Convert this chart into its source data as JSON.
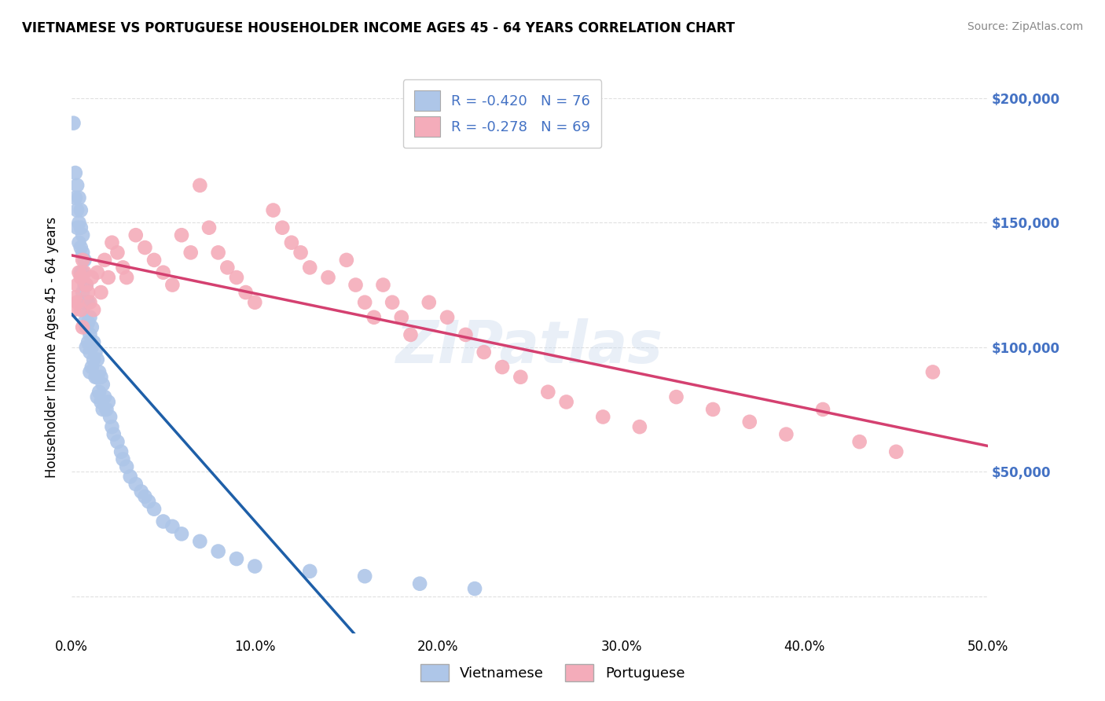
{
  "title": "VIETNAMESE VS PORTUGUESE HOUSEHOLDER INCOME AGES 45 - 64 YEARS CORRELATION CHART",
  "source": "Source: ZipAtlas.com",
  "ylabel": "Householder Income Ages 45 - 64 years",
  "xlim": [
    0.0,
    0.5
  ],
  "ylim": [
    -15000,
    215000
  ],
  "xtick_labels": [
    "0.0%",
    "10.0%",
    "20.0%",
    "30.0%",
    "40.0%",
    "50.0%"
  ],
  "xtick_vals": [
    0.0,
    0.1,
    0.2,
    0.3,
    0.4,
    0.5
  ],
  "ytick_vals": [
    0,
    50000,
    100000,
    150000,
    200000
  ],
  "viet_R": -0.42,
  "viet_N": 76,
  "port_R": -0.278,
  "port_N": 69,
  "viet_color": "#AEC6E8",
  "port_color": "#F4ACBA",
  "viet_line_color": "#1E5FA8",
  "port_line_color": "#D44070",
  "background_color": "#FFFFFF",
  "grid_color": "#DDDDDD",
  "right_tick_color": "#4472C4",
  "watermark": "ZIPatlas",
  "legend_label_viet": "Vietnamese",
  "legend_label_port": "Portuguese",
  "viet_x": [
    0.001,
    0.002,
    0.002,
    0.003,
    0.003,
    0.003,
    0.004,
    0.004,
    0.004,
    0.005,
    0.005,
    0.005,
    0.005,
    0.006,
    0.006,
    0.006,
    0.006,
    0.006,
    0.007,
    0.007,
    0.007,
    0.007,
    0.008,
    0.008,
    0.008,
    0.008,
    0.009,
    0.009,
    0.009,
    0.01,
    0.01,
    0.01,
    0.01,
    0.011,
    0.011,
    0.011,
    0.012,
    0.012,
    0.013,
    0.013,
    0.014,
    0.014,
    0.014,
    0.015,
    0.015,
    0.016,
    0.016,
    0.017,
    0.017,
    0.018,
    0.019,
    0.02,
    0.021,
    0.022,
    0.023,
    0.025,
    0.027,
    0.028,
    0.03,
    0.032,
    0.035,
    0.038,
    0.04,
    0.042,
    0.045,
    0.05,
    0.055,
    0.06,
    0.07,
    0.08,
    0.09,
    0.1,
    0.13,
    0.16,
    0.19,
    0.22
  ],
  "viet_y": [
    190000,
    170000,
    160000,
    165000,
    155000,
    148000,
    160000,
    150000,
    142000,
    155000,
    148000,
    140000,
    130000,
    145000,
    138000,
    130000,
    122000,
    115000,
    135000,
    125000,
    118000,
    110000,
    125000,
    118000,
    108000,
    100000,
    118000,
    110000,
    102000,
    112000,
    105000,
    98000,
    90000,
    108000,
    100000,
    92000,
    102000,
    95000,
    98000,
    88000,
    95000,
    88000,
    80000,
    90000,
    82000,
    88000,
    78000,
    85000,
    75000,
    80000,
    75000,
    78000,
    72000,
    68000,
    65000,
    62000,
    58000,
    55000,
    52000,
    48000,
    45000,
    42000,
    40000,
    38000,
    35000,
    30000,
    28000,
    25000,
    22000,
    18000,
    15000,
    12000,
    10000,
    8000,
    5000,
    3000
  ],
  "port_x": [
    0.001,
    0.002,
    0.003,
    0.003,
    0.004,
    0.005,
    0.005,
    0.006,
    0.006,
    0.007,
    0.008,
    0.009,
    0.01,
    0.011,
    0.012,
    0.014,
    0.016,
    0.018,
    0.02,
    0.022,
    0.025,
    0.028,
    0.03,
    0.035,
    0.04,
    0.045,
    0.05,
    0.055,
    0.06,
    0.065,
    0.07,
    0.075,
    0.08,
    0.085,
    0.09,
    0.095,
    0.1,
    0.11,
    0.115,
    0.12,
    0.125,
    0.13,
    0.14,
    0.15,
    0.155,
    0.16,
    0.165,
    0.17,
    0.175,
    0.18,
    0.185,
    0.195,
    0.205,
    0.215,
    0.225,
    0.235,
    0.245,
    0.26,
    0.27,
    0.29,
    0.31,
    0.33,
    0.35,
    0.37,
    0.39,
    0.41,
    0.43,
    0.45,
    0.47
  ],
  "port_y": [
    115000,
    120000,
    125000,
    118000,
    130000,
    128000,
    115000,
    135000,
    108000,
    130000,
    125000,
    122000,
    118000,
    128000,
    115000,
    130000,
    122000,
    135000,
    128000,
    142000,
    138000,
    132000,
    128000,
    145000,
    140000,
    135000,
    130000,
    125000,
    145000,
    138000,
    165000,
    148000,
    138000,
    132000,
    128000,
    122000,
    118000,
    155000,
    148000,
    142000,
    138000,
    132000,
    128000,
    135000,
    125000,
    118000,
    112000,
    125000,
    118000,
    112000,
    105000,
    118000,
    112000,
    105000,
    98000,
    92000,
    88000,
    82000,
    78000,
    72000,
    68000,
    80000,
    75000,
    70000,
    65000,
    75000,
    62000,
    58000,
    90000
  ]
}
